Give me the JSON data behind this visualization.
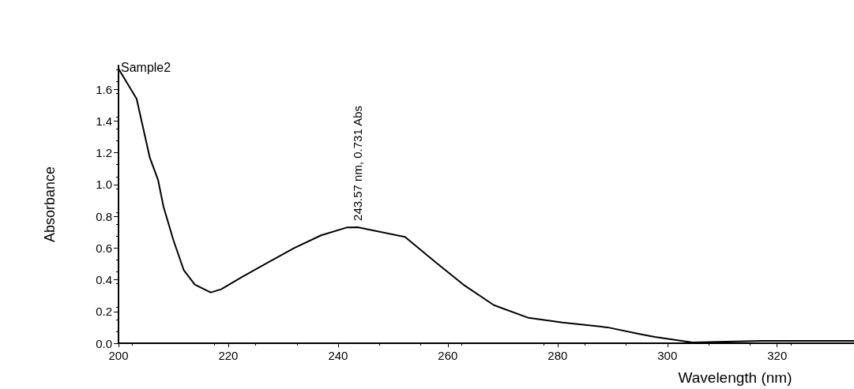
{
  "chart_data": {
    "type": "line",
    "xlabel": "Wavelength (nm)",
    "ylabel": "Absorbance",
    "xlim": [
      200,
      334
    ],
    "xticks": [
      200,
      220,
      240,
      260,
      280,
      300,
      320
    ],
    "ylim": [
      0,
      1.75
    ],
    "yticks": [
      {
        "value": 0,
        "label": "0.0"
      },
      0.2,
      0.4,
      0.6,
      0.8,
      {
        "value": 1,
        "label": "1.0"
      },
      1.2,
      1.4,
      1.6
    ],
    "grid": false,
    "legend": false,
    "marker": "none",
    "line_style": "solid",
    "annotations": [
      {
        "text": "243.57 nm, 0.731 Abs",
        "x": 243.57,
        "y": 0.731
      }
    ],
    "series": [
      {
        "name": "Sample2",
        "color": "#000000",
        "x": [
          200,
          203.3,
          205.7,
          207.2,
          208.2,
          210,
          211.9,
          213.9,
          216.8,
          218.7,
          222.6,
          227.3,
          232,
          236.9,
          241.7,
          243.57,
          252.2,
          257.8,
          262.8,
          268.4,
          274.7,
          280.9,
          289.1,
          294.7,
          297.7,
          304.6,
          317,
          334
        ],
        "values": [
          1.73,
          1.54,
          1.17,
          1.03,
          0.86,
          0.65,
          0.46,
          0.37,
          0.32,
          0.34,
          0.42,
          0.51,
          0.6,
          0.68,
          0.73,
          0.731,
          0.67,
          0.51,
          0.37,
          0.24,
          0.16,
          0.13,
          0.1,
          0.06,
          0.04,
          0.005,
          0.015,
          0.015
        ]
      }
    ]
  }
}
